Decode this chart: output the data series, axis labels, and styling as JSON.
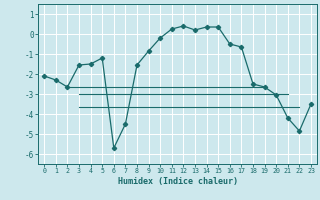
{
  "xlabel": "Humidex (Indice chaleur)",
  "bg_color": "#cde8ed",
  "grid_color": "#ffffff",
  "line_color": "#1a6b6b",
  "curve_x": [
    0,
    1,
    2,
    3,
    4,
    5,
    6,
    7,
    8,
    9,
    10,
    11,
    12,
    13,
    14,
    15,
    16,
    17,
    18,
    19,
    20,
    21,
    22,
    23
  ],
  "curve_y": [
    -2.1,
    -2.3,
    -2.65,
    -1.55,
    -1.5,
    -1.2,
    -5.7,
    -4.5,
    -1.55,
    -0.85,
    -0.2,
    0.25,
    0.4,
    0.2,
    0.35,
    0.35,
    -0.5,
    -0.65,
    -2.5,
    -2.65,
    -3.05,
    -4.2,
    -4.85,
    -3.5
  ],
  "hline1_x_start": 2,
  "hline1_x_end": 19,
  "hline1_y": -2.65,
  "hline2_x_start": 3,
  "hline2_x_end": 21,
  "hline2_y": -3.0,
  "hline3_x_start": 3,
  "hline3_x_end": 22,
  "hline3_y": -3.65,
  "ylim": [
    -6.5,
    1.5
  ],
  "xlim": [
    -0.5,
    23.5
  ],
  "yticks": [
    1,
    0,
    -1,
    -2,
    -3,
    -4,
    -5,
    -6
  ],
  "xticks": [
    0,
    1,
    2,
    3,
    4,
    5,
    6,
    7,
    8,
    9,
    10,
    11,
    12,
    13,
    14,
    15,
    16,
    17,
    18,
    19,
    20,
    21,
    22,
    23
  ],
  "xlabel_fontsize": 6.0,
  "ytick_fontsize": 5.5,
  "xtick_fontsize": 4.8,
  "linewidth": 0.9,
  "marker_size": 2.2
}
